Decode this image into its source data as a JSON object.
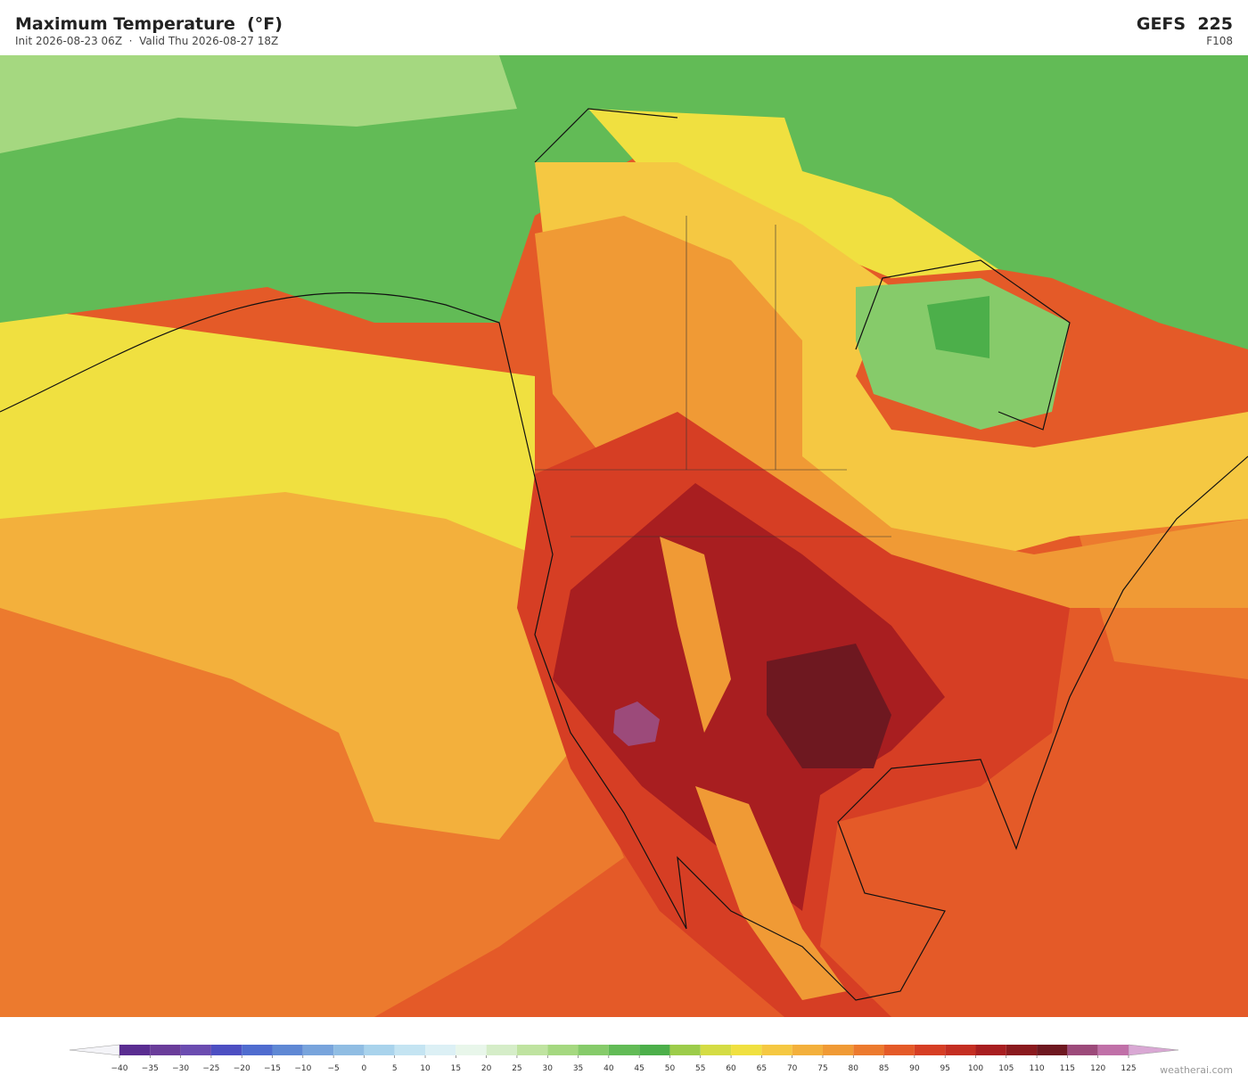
{
  "header": {
    "title": "Maximum Temperature  (°F)",
    "subtitle": "Init 2026-08-23 06Z  ·  Valid Thu 2026-08-27 18Z",
    "model": "GEFS  225",
    "forecast_hour": "F108"
  },
  "colorbar": {
    "ticks": [
      {
        "value": -40,
        "label": "−40"
      },
      {
        "value": -35,
        "label": "−35"
      },
      {
        "value": -30,
        "label": "−30"
      },
      {
        "value": -25,
        "label": "−25"
      },
      {
        "value": -20,
        "label": "−20"
      },
      {
        "value": -15,
        "label": "−15"
      },
      {
        "value": -10,
        "label": "−10"
      },
      {
        "value": -5,
        "label": "−5"
      },
      0,
      5,
      10,
      15,
      20,
      25,
      30,
      35,
      40,
      45,
      50,
      55,
      60,
      65,
      70,
      75,
      80,
      85,
      90,
      95,
      100,
      105,
      110,
      115,
      120,
      125
    ],
    "colors": [
      "#5a2d91",
      "#6a3d9a",
      "#6b4cb0",
      "#4d4fc2",
      "#4f6ccf",
      "#5f88d4",
      "#78a4dc",
      "#90bde3",
      "#a9d3ec",
      "#c4e4f2",
      "#dcf0f5",
      "#e8f6ea",
      "#d5edc8",
      "#bfe3a0",
      "#a5d880",
      "#86cb6a",
      "#62bb56",
      "#4caf4a",
      "#9ccc4a",
      "#d4dc44",
      "#f0e040",
      "#f5c842",
      "#f3b03c",
      "#f09a35",
      "#ec7a2e",
      "#e45a28",
      "#d63e24",
      "#c42e22",
      "#a81e20",
      "#8a1a1e",
      "#6e1820",
      "#9c4a7a",
      "#c070a8"
    ]
  },
  "watermark": "weatherai.com"
}
